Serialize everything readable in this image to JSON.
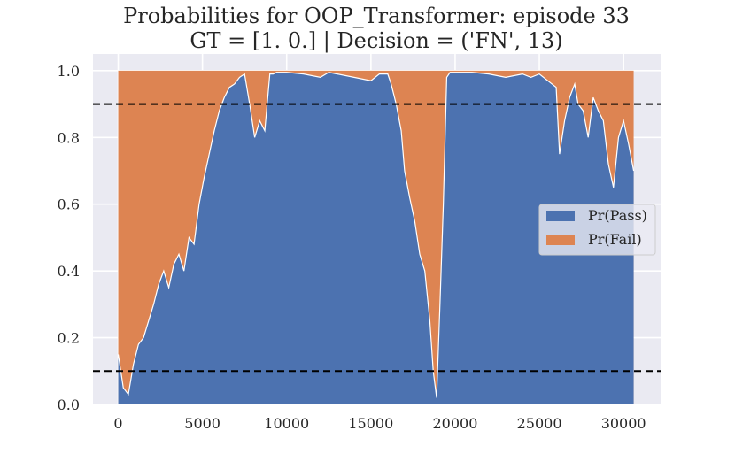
{
  "chart_data": {
    "type": "area",
    "stacked": true,
    "title_lines": [
      "Probabilities for OOP_Transformer: episode 33",
      "GT = [1. 0.] | Decision = ('FN', 13)"
    ],
    "xlabel": "",
    "ylabel": "",
    "xlim": [
      -1500,
      32200
    ],
    "ylim": [
      0,
      1.05
    ],
    "xticks": [
      0,
      5000,
      10000,
      15000,
      20000,
      25000,
      30000
    ],
    "yticks": [
      0.0,
      0.2,
      0.4,
      0.6,
      0.8,
      1.0
    ],
    "ytick_labels": [
      "0.0",
      "0.2",
      "0.4",
      "0.6",
      "0.8",
      "1.0"
    ],
    "grid": true,
    "legend_position": "center-right",
    "thresholds": [
      0.9,
      0.1
    ],
    "series": [
      {
        "name": "Pr(Pass)",
        "color": "#4c72b0",
        "x": [
          0,
          300,
          600,
          900,
          1200,
          1500,
          1800,
          2100,
          2400,
          2700,
          3000,
          3300,
          3600,
          3900,
          4200,
          4500,
          4800,
          5100,
          5400,
          5700,
          6000,
          6300,
          6600,
          6900,
          7200,
          7500,
          7800,
          8100,
          8400,
          8700,
          9000,
          9200,
          9400,
          10000,
          11000,
          12000,
          12500,
          13000,
          14000,
          15000,
          15500,
          16000,
          16200,
          16500,
          16800,
          17000,
          17300,
          17600,
          17900,
          18200,
          18500,
          18700,
          18900,
          19100,
          19300,
          19500,
          19700,
          20000,
          21000,
          22000,
          23000,
          24000,
          24500,
          25000,
          25500,
          26000,
          26200,
          26500,
          26800,
          27100,
          27300,
          27600,
          27900,
          28200,
          28500,
          28800,
          29100,
          29400,
          29700,
          30000,
          30300,
          30600
        ],
        "values": [
          0.15,
          0.05,
          0.03,
          0.12,
          0.18,
          0.2,
          0.25,
          0.3,
          0.36,
          0.4,
          0.35,
          0.42,
          0.45,
          0.4,
          0.5,
          0.48,
          0.6,
          0.68,
          0.75,
          0.82,
          0.88,
          0.92,
          0.95,
          0.96,
          0.98,
          0.99,
          0.9,
          0.8,
          0.85,
          0.82,
          0.99,
          0.99,
          0.995,
          0.995,
          0.99,
          0.98,
          0.995,
          0.99,
          0.98,
          0.97,
          0.99,
          0.99,
          0.96,
          0.9,
          0.82,
          0.7,
          0.62,
          0.55,
          0.45,
          0.4,
          0.25,
          0.1,
          0.02,
          0.3,
          0.6,
          0.98,
          0.995,
          0.995,
          0.995,
          0.99,
          0.98,
          0.99,
          0.98,
          0.99,
          0.97,
          0.95,
          0.75,
          0.85,
          0.92,
          0.96,
          0.9,
          0.88,
          0.8,
          0.92,
          0.88,
          0.85,
          0.72,
          0.65,
          0.8,
          0.85,
          0.78,
          0.7
        ]
      },
      {
        "name": "Pr(Fail)",
        "color": "#dd8452"
      }
    ]
  }
}
